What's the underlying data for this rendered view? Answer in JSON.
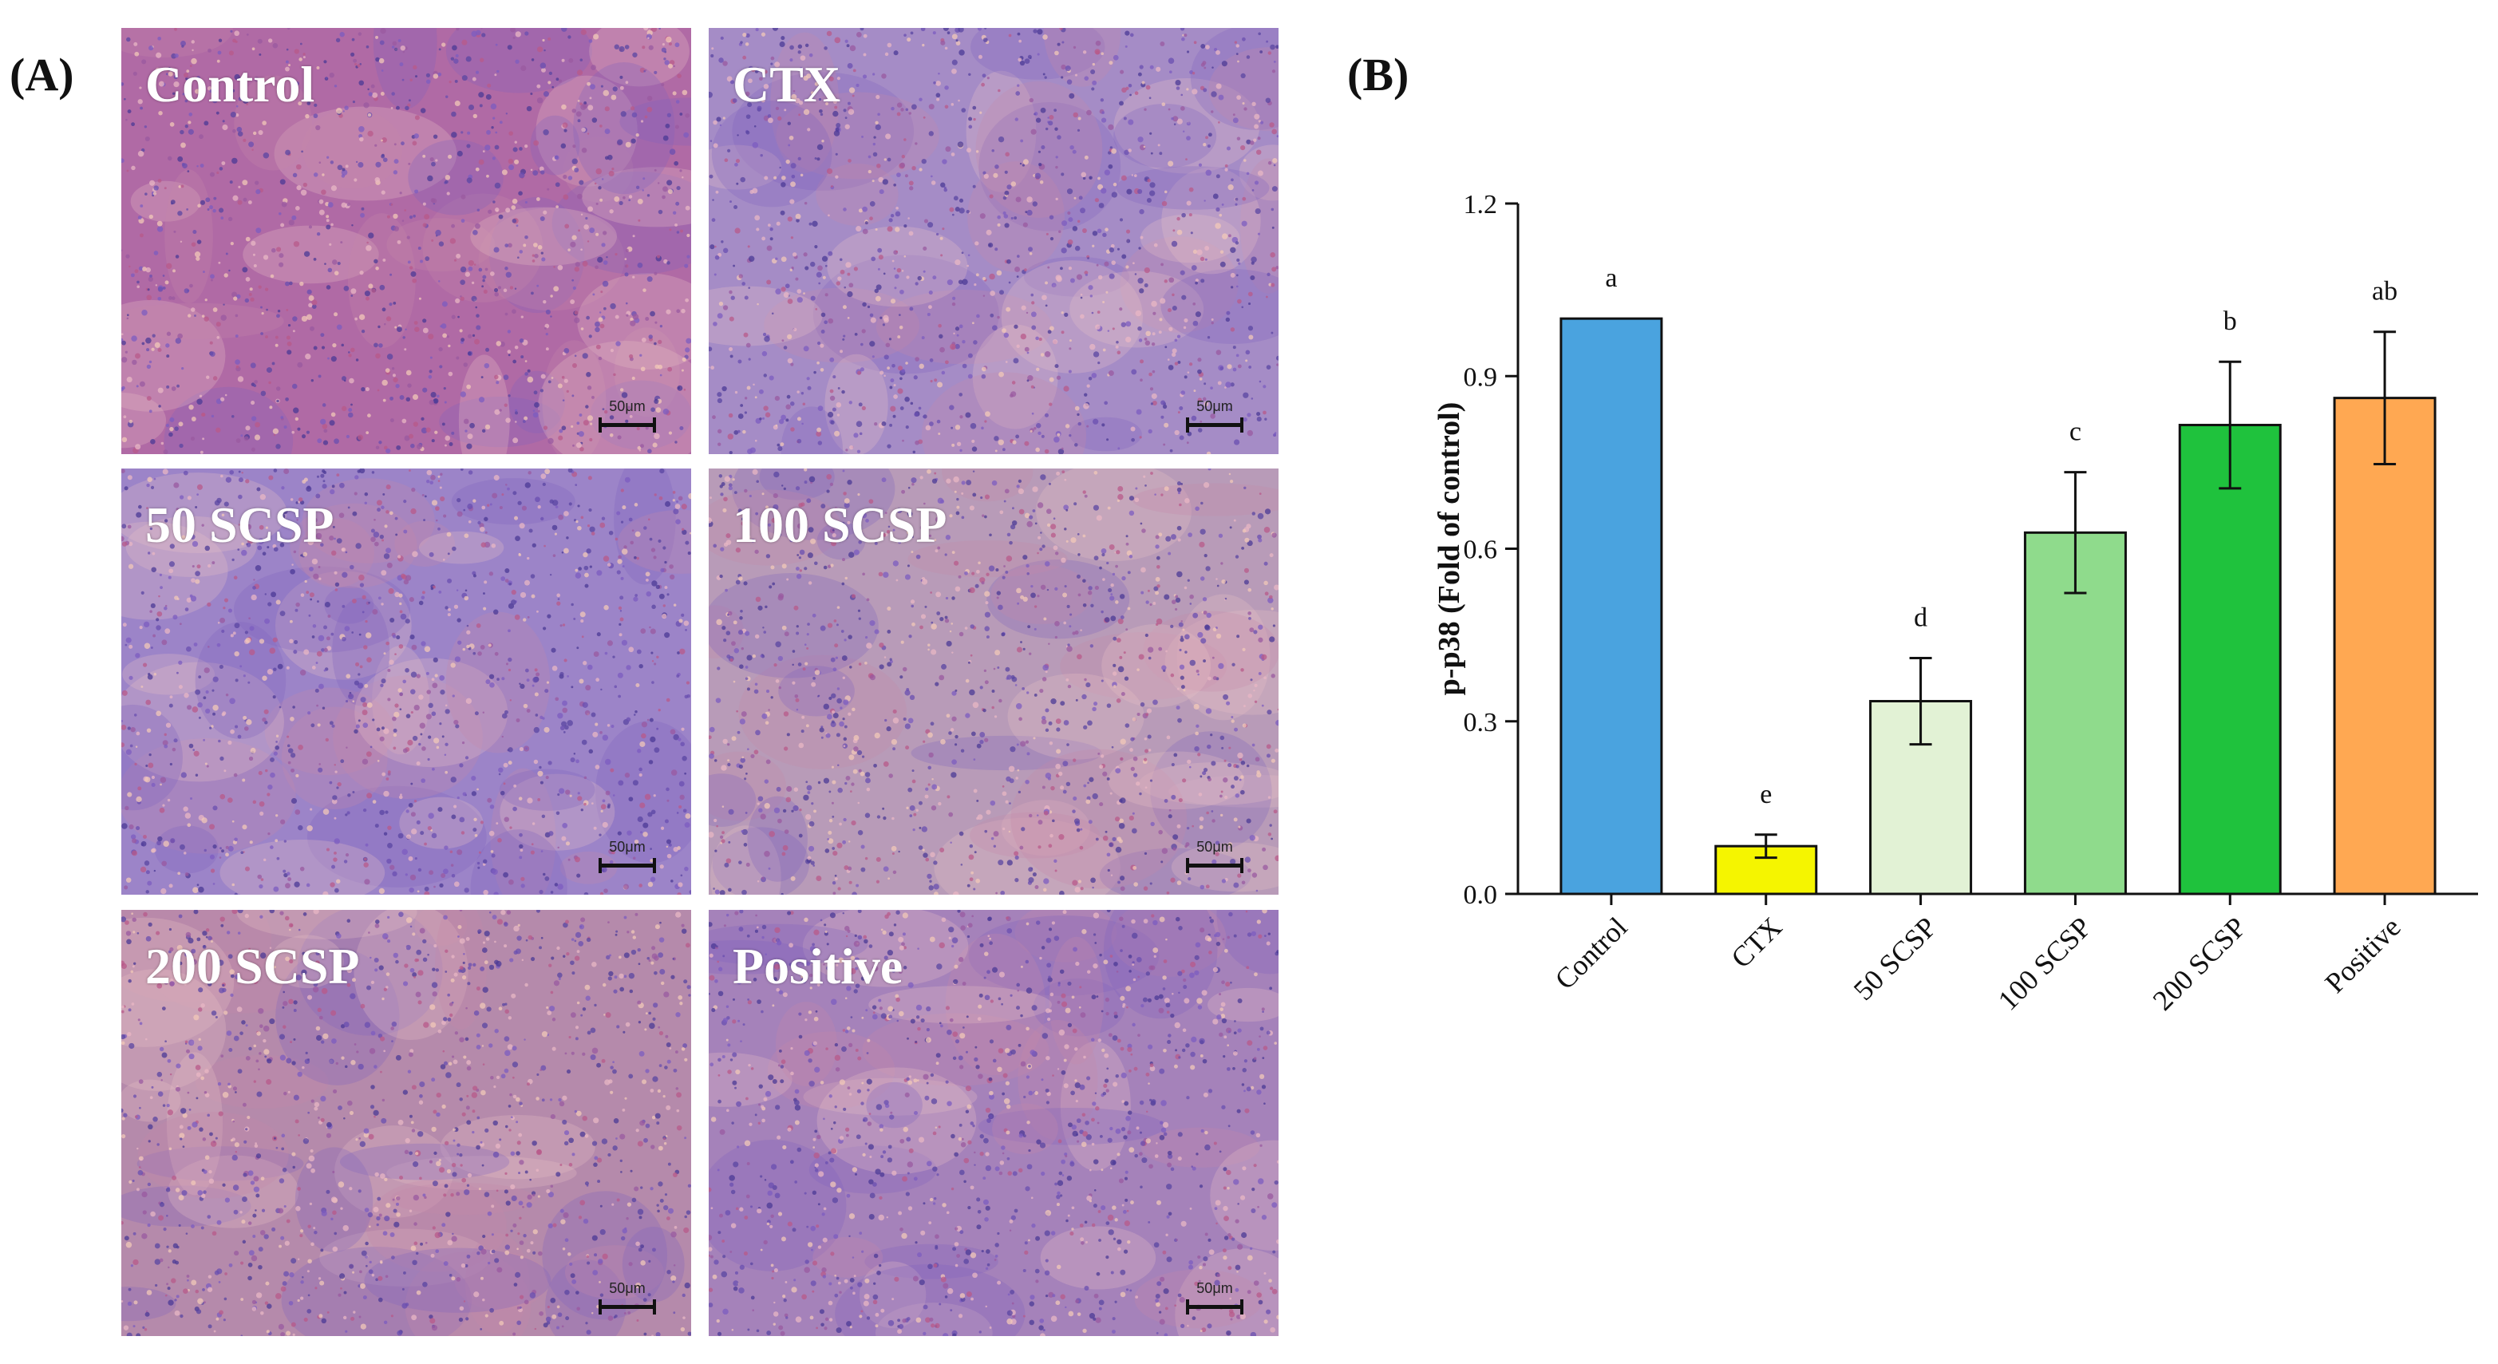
{
  "panels": {
    "a_label": "(A)",
    "b_label": "(B)"
  },
  "micrographs": [
    {
      "title": "Control",
      "scale": "50μm",
      "tone": "#b06aa5"
    },
    {
      "title": "CTX",
      "scale": "50μm",
      "tone": "#a58cc6"
    },
    {
      "title": "50 SCSP",
      "scale": "50μm",
      "tone": "#9c84c8"
    },
    {
      "title": "100 SCSP",
      "scale": "50μm",
      "tone": "#b89bb8"
    },
    {
      "title": "200 SCSP",
      "scale": "50μm",
      "tone": "#b58aab"
    },
    {
      "title": "Positive",
      "scale": "50μm",
      "tone": "#a582ba"
    }
  ],
  "chart_data": {
    "type": "bar",
    "title": "",
    "xlabel": "",
    "ylabel": "p-p38 (Fold of control)",
    "ylim": [
      0,
      1.2
    ],
    "yticks": [
      "0.0",
      "0.3",
      "0.6",
      "0.9",
      "1.2"
    ],
    "categories": [
      "Control",
      "CTX",
      "50 SCSP",
      "100 SCSP",
      "200 SCSP",
      "Positive"
    ],
    "values": [
      1.0,
      0.083,
      0.335,
      0.628,
      0.815,
      0.862
    ],
    "errors": [
      0,
      0.02,
      0.075,
      0.105,
      0.11,
      0.115
    ],
    "letters": [
      "a",
      "e",
      "d",
      "c",
      "b",
      "ab"
    ],
    "colors": [
      "#4aa3df",
      "#f5f500",
      "#e2f2d5",
      "#8fdb8c",
      "#1fc23d",
      "#ffa852"
    ]
  }
}
